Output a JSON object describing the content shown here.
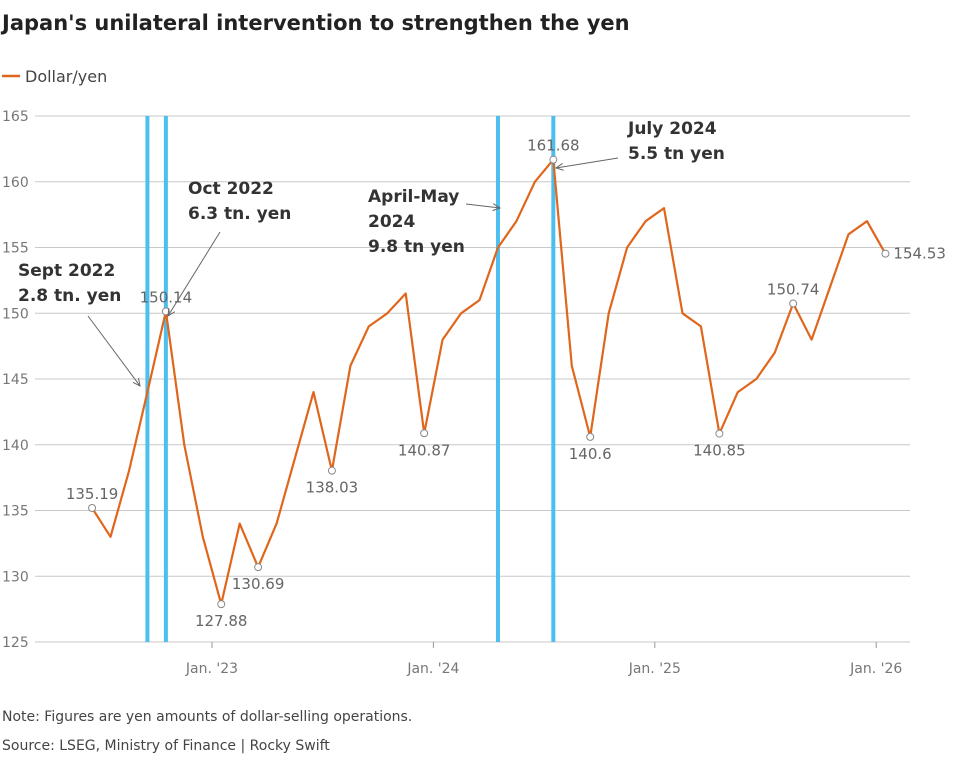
{
  "chart_data": {
    "type": "line",
    "title": "Japan's unilateral intervention to strengthen the yen",
    "note": "Note: Figures are yen amounts of dollar-selling operations.",
    "source": "Source: LSEG, Ministry of Finance | Rocky Swift",
    "x": [
      "2022-06",
      "2022-07",
      "2022-08",
      "2022-09",
      "2022-10",
      "2022-11",
      "2022-12",
      "2023-01",
      "2023-02",
      "2023-03",
      "2023-04",
      "2023-05",
      "2023-06",
      "2023-07",
      "2023-08",
      "2023-09",
      "2023-10",
      "2023-11",
      "2023-12",
      "2024-01",
      "2024-02",
      "2024-03",
      "2024-04",
      "2024-05",
      "2024-06",
      "2024-07",
      "2024-08",
      "2024-09",
      "2024-10",
      "2024-11",
      "2024-12",
      "2025-01",
      "2025-02",
      "2025-03",
      "2025-04",
      "2025-05",
      "2025-06",
      "2025-07",
      "2025-08",
      "2025-09",
      "2025-10",
      "2025-11",
      "2025-12",
      "2026-01"
    ],
    "series": [
      {
        "name": "Dollar/yen",
        "color": "#e0661c",
        "values": [
          135.19,
          133,
          138,
          144,
          150.14,
          140,
          133,
          127.88,
          134,
          130.69,
          134,
          139,
          144,
          138.03,
          146,
          149,
          150,
          151.5,
          140.87,
          148,
          150,
          151,
          155,
          157,
          160,
          161.68,
          146,
          140.6,
          150,
          155,
          157,
          158,
          150,
          149,
          140.85,
          144,
          145,
          147,
          150.74,
          148,
          152,
          156,
          157,
          154.53
        ],
        "value_labels": [
          "135.19",
          null,
          null,
          null,
          "150.14",
          null,
          null,
          "127.88",
          null,
          "130.69",
          null,
          null,
          null,
          "138.03",
          null,
          null,
          null,
          null,
          "140.87",
          null,
          null,
          null,
          null,
          null,
          null,
          "161.68",
          null,
          "140.6",
          null,
          null,
          null,
          null,
          null,
          null,
          "140.85",
          null,
          null,
          null,
          "150.74",
          null,
          null,
          null,
          null,
          "154.53"
        ]
      }
    ],
    "events": [
      {
        "x": "2022-09",
        "lines": [
          "Sept 2022",
          "2.8 tn. yen"
        ]
      },
      {
        "x": "2022-10",
        "lines": [
          "Oct 2022",
          "6.3 tn. yen"
        ]
      },
      {
        "x": "2024-04",
        "lines": [
          "April-May",
          "2024",
          "9.8 tn yen"
        ]
      },
      {
        "x": "2024-07",
        "lines": [
          "July 2024",
          "5.5 tn yen"
        ]
      }
    ],
    "event_color": "#4dbfee",
    "ylim": [
      125,
      165
    ],
    "yticks": [
      125,
      130,
      135,
      140,
      145,
      150,
      155,
      160,
      165
    ],
    "xticks": [
      {
        "value": "2023-01",
        "label": "Jan. '23"
      },
      {
        "value": "2024-01",
        "label": "Jan. '24"
      },
      {
        "value": "2025-01",
        "label": "Jan. '25"
      },
      {
        "value": "2026-01",
        "label": "Jan. '26"
      }
    ],
    "grid": true
  }
}
